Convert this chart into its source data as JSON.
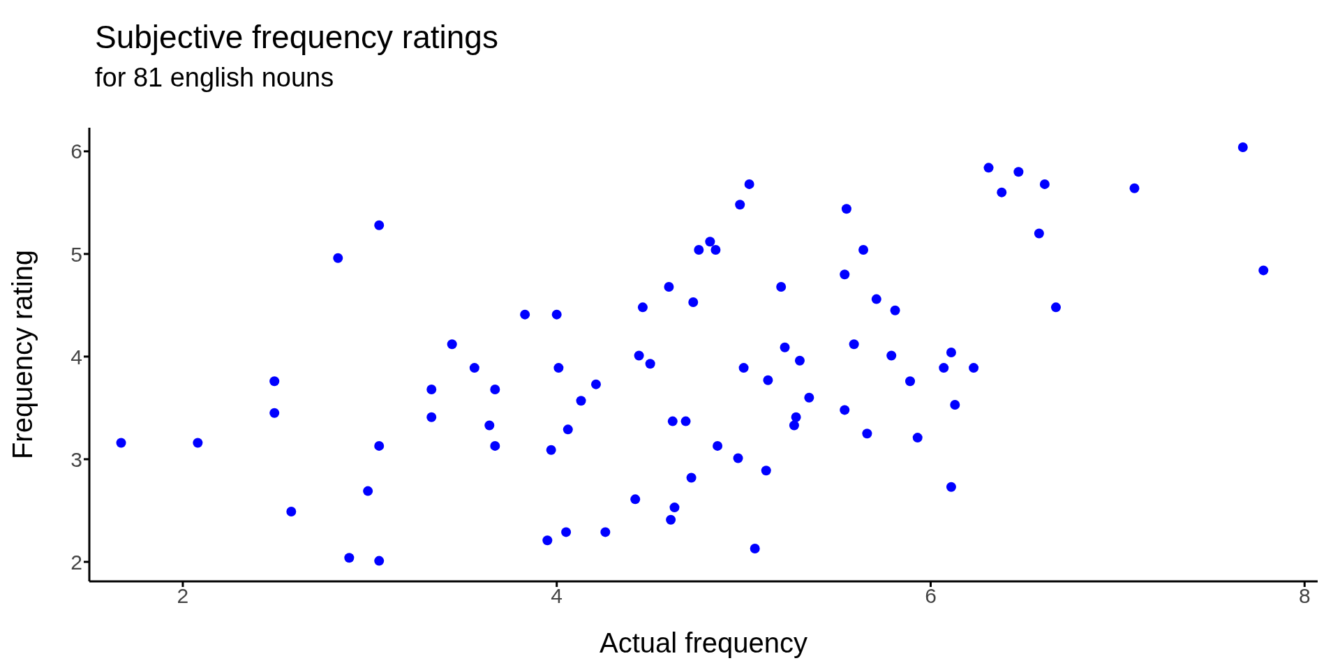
{
  "chart_data": {
    "type": "scatter",
    "title": "Subjective frequency ratings",
    "subtitle": "for 81 english nouns",
    "xlabel": "Actual frequency",
    "ylabel": "Frequency rating",
    "color": "#0000ff",
    "marker": "circle",
    "x": [
      1.67,
      2.08,
      2.49,
      2.49,
      2.58,
      2.83,
      2.89,
      2.99,
      3.05,
      3.05,
      3.05,
      3.33,
      3.33,
      3.44,
      3.56,
      3.64,
      3.67,
      3.67,
      3.83,
      3.95,
      3.97,
      4.0,
      4.01,
      4.05,
      4.06,
      4.13,
      4.21,
      4.26,
      4.42,
      4.44,
      4.46,
      4.5,
      4.6,
      4.61,
      4.62,
      4.63,
      4.69,
      4.72,
      4.73,
      4.76,
      4.82,
      4.85,
      4.86,
      4.97,
      4.98,
      5.0,
      5.03,
      5.06,
      5.12,
      5.13,
      5.2,
      5.22,
      5.27,
      5.28,
      5.3,
      5.35,
      5.54,
      5.54,
      5.55,
      5.59,
      5.64,
      5.66,
      5.71,
      5.79,
      5.81,
      5.89,
      5.93,
      6.07,
      6.11,
      6.11,
      6.13,
      6.23,
      6.31,
      6.38,
      6.47,
      6.58,
      6.61,
      6.67,
      7.09,
      7.67,
      7.78
    ],
    "values": [
      3.16,
      3.16,
      3.76,
      3.45,
      2.49,
      4.96,
      2.04,
      2.69,
      5.28,
      3.13,
      2.01,
      3.68,
      3.41,
      4.12,
      3.89,
      3.33,
      3.68,
      3.13,
      4.41,
      2.21,
      3.09,
      4.41,
      3.89,
      2.29,
      3.29,
      3.57,
      3.73,
      2.29,
      2.61,
      4.01,
      4.48,
      3.93,
      4.68,
      2.41,
      3.37,
      2.53,
      3.37,
      2.82,
      4.53,
      5.04,
      5.12,
      5.04,
      3.13,
      3.01,
      5.48,
      3.89,
      5.68,
      2.13,
      2.89,
      3.77,
      4.68,
      4.09,
      3.33,
      3.41,
      3.96,
      3.6,
      3.48,
      4.8,
      5.44,
      4.12,
      5.04,
      3.25,
      4.56,
      4.01,
      4.45,
      3.76,
      3.21,
      3.89,
      4.04,
      2.73,
      3.53,
      3.89,
      5.84,
      5.6,
      5.8,
      5.2,
      5.68,
      4.48,
      5.64,
      6.04,
      4.84
    ],
    "xlim": [
      1.5,
      8.07
    ],
    "ylim": [
      1.81,
      6.23
    ],
    "xticks": [
      2,
      4,
      6,
      8
    ],
    "yticks": [
      2,
      3,
      4,
      5,
      6
    ]
  }
}
